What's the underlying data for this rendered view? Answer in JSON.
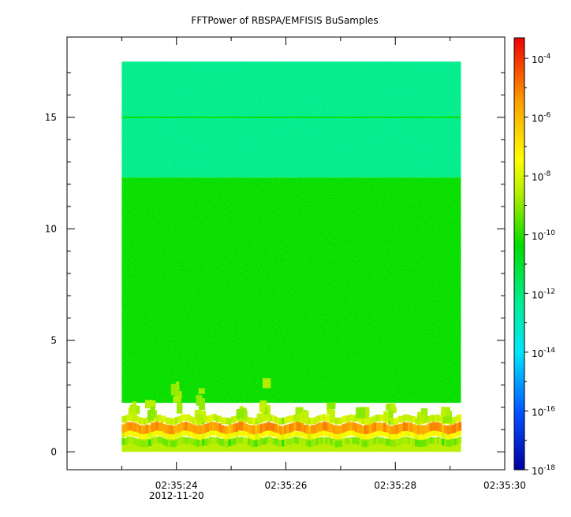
{
  "chart_data": {
    "type": "heatmap",
    "title": "FFTPower of RBSPA/EMFISIS  BuSamples",
    "xlabel": "",
    "ylabel": "",
    "x_ticks": [
      {
        "label": "02:35:24",
        "sublabel": "2012-11-20"
      },
      {
        "label": "02:35:26",
        "sublabel": ""
      },
      {
        "label": "02:35:28",
        "sublabel": ""
      },
      {
        "label": "02:35:30",
        "sublabel": ""
      }
    ],
    "x_range_seconds": [
      22,
      30
    ],
    "y_ticks": [
      "0",
      "5",
      "10",
      "15"
    ],
    "y_range": [
      -0.8,
      18.6
    ],
    "data_extent": {
      "t_start_s": 23.0,
      "t_end_s": 29.2,
      "y_min": 0.0,
      "y_max": 17.5
    },
    "colorbar": {
      "scale": "log",
      "range_exponent": [
        -18,
        -3.3
      ],
      "tick_base": "10",
      "tick_exponents": [
        "-4",
        "-6",
        "-8",
        "-10",
        "-12",
        "-14",
        "-16",
        "-18"
      ],
      "colormap": "rainbow"
    },
    "features": [
      {
        "band_y": [
          12.3,
          17.5
        ],
        "log_power": -12.3
      },
      {
        "band_y": [
          2.2,
          12.3
        ],
        "log_power": -10.3
      },
      {
        "band_y": [
          0.0,
          0.6
        ],
        "log_power": -8.5
      },
      {
        "line_y": 15.0,
        "log_power": -10.3
      },
      {
        "line_y": 1.05,
        "log_power": -5.4
      },
      {
        "line_y": 0.75,
        "log_power": -7.2
      }
    ]
  }
}
